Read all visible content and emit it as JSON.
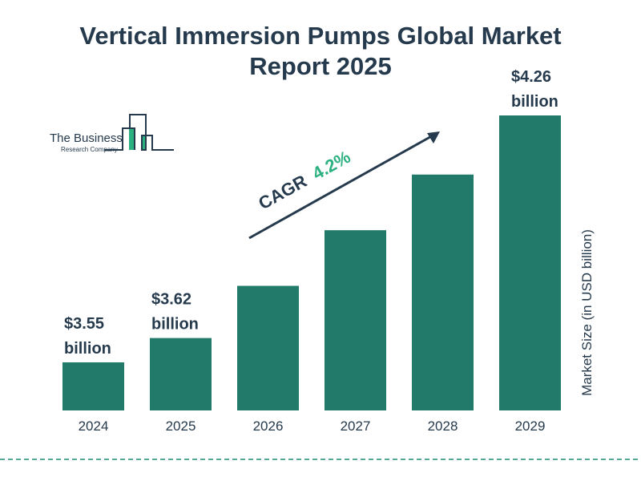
{
  "title_line1": "Vertical Immersion Pumps Global Market",
  "title_line2": "Report 2025",
  "logo": {
    "line1": "The Business",
    "line2": "Research Company"
  },
  "colors": {
    "bar": "#217a6a",
    "title": "#263a4d",
    "cagr": "#2bb07f",
    "accent": "#1e8c74"
  },
  "chart_data": {
    "type": "bar",
    "categories": [
      "2024",
      "2025",
      "2026",
      "2027",
      "2028",
      "2029"
    ],
    "values": [
      3.55,
      3.62,
      3.77,
      3.93,
      4.09,
      4.26
    ],
    "data_labels": [
      {
        "index": 0,
        "value": "$3.55",
        "unit": "billion"
      },
      {
        "index": 1,
        "value": "$3.62",
        "unit": "billion"
      },
      {
        "index": 5,
        "value": "$4.26",
        "unit": "billion"
      }
    ],
    "ylabel": "Market Size (in USD billion)",
    "annotation": {
      "label": "CAGR",
      "value": "4.2%"
    },
    "grid": false
  }
}
